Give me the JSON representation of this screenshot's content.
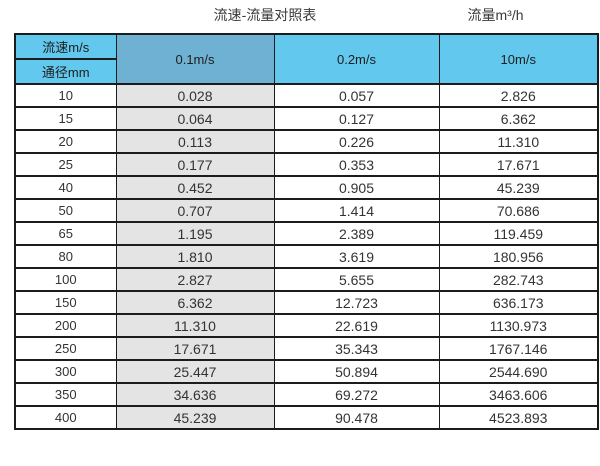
{
  "page": {
    "title_left": "流速-流量对照表",
    "title_right": "流量m³/h"
  },
  "colors": {
    "blue": "#62c8ee",
    "blue_dark": "#6fb1d2",
    "gray": "#e4e4e4",
    "border": "#1c1c1c"
  },
  "table": {
    "corner_top": "流速m/s",
    "corner_bottom": "通径mm",
    "velocity_headers": [
      "0.1m/s",
      "0.2m/s",
      "10m/s"
    ],
    "rows": [
      {
        "diameter": "10",
        "values": [
          "0.028",
          "0.057",
          "2.826"
        ]
      },
      {
        "diameter": "15",
        "values": [
          "0.064",
          "0.127",
          "6.362"
        ]
      },
      {
        "diameter": "20",
        "values": [
          "0.113",
          "0.226",
          "11.310"
        ]
      },
      {
        "diameter": "25",
        "values": [
          "0.177",
          "0.353",
          "17.671"
        ]
      },
      {
        "diameter": "40",
        "values": [
          "0.452",
          "0.905",
          "45.239"
        ]
      },
      {
        "diameter": "50",
        "values": [
          "0.707",
          "1.414",
          "70.686"
        ]
      },
      {
        "diameter": "65",
        "values": [
          "1.195",
          "2.389",
          "119.459"
        ]
      },
      {
        "diameter": "80",
        "values": [
          "1.810",
          "3.619",
          "180.956"
        ]
      },
      {
        "diameter": "100",
        "values": [
          "2.827",
          "5.655",
          "282.743"
        ]
      },
      {
        "diameter": "150",
        "values": [
          "6.362",
          "12.723",
          "636.173"
        ]
      },
      {
        "diameter": "200",
        "values": [
          "11.310",
          "22.619",
          "1130.973"
        ]
      },
      {
        "diameter": "250",
        "values": [
          "17.671",
          "35.343",
          "1767.146"
        ]
      },
      {
        "diameter": "300",
        "values": [
          "25.447",
          "50.894",
          "2544.690"
        ]
      },
      {
        "diameter": "350",
        "values": [
          "34.636",
          "69.272",
          "3463.606"
        ]
      },
      {
        "diameter": "400",
        "values": [
          "45.239",
          "90.478",
          "4523.893"
        ]
      }
    ]
  },
  "chart_data": {
    "type": "table",
    "title": "流速-流量对照表",
    "unit_label": "流量m³/h",
    "row_header": "通径mm",
    "column_header": "流速m/s",
    "columns": [
      "0.1m/s",
      "0.2m/s",
      "10m/s"
    ],
    "diameters_mm": [
      10,
      15,
      20,
      25,
      40,
      50,
      65,
      80,
      100,
      150,
      200,
      250,
      300,
      350,
      400
    ],
    "series": [
      {
        "name": "0.1m/s",
        "values": [
          0.028,
          0.064,
          0.113,
          0.177,
          0.452,
          0.707,
          1.195,
          1.81,
          2.827,
          6.362,
          11.31,
          17.671,
          25.447,
          34.636,
          45.239
        ]
      },
      {
        "name": "0.2m/s",
        "values": [
          0.057,
          0.127,
          0.226,
          0.353,
          0.905,
          1.414,
          2.389,
          3.619,
          5.655,
          12.723,
          22.619,
          35.343,
          50.894,
          69.272,
          90.478
        ]
      },
      {
        "name": "10m/s",
        "values": [
          2.826,
          6.362,
          11.31,
          17.671,
          45.239,
          70.686,
          119.459,
          180.956,
          282.743,
          636.173,
          1130.973,
          1767.146,
          2544.69,
          3463.606,
          4523.893
        ]
      }
    ]
  }
}
